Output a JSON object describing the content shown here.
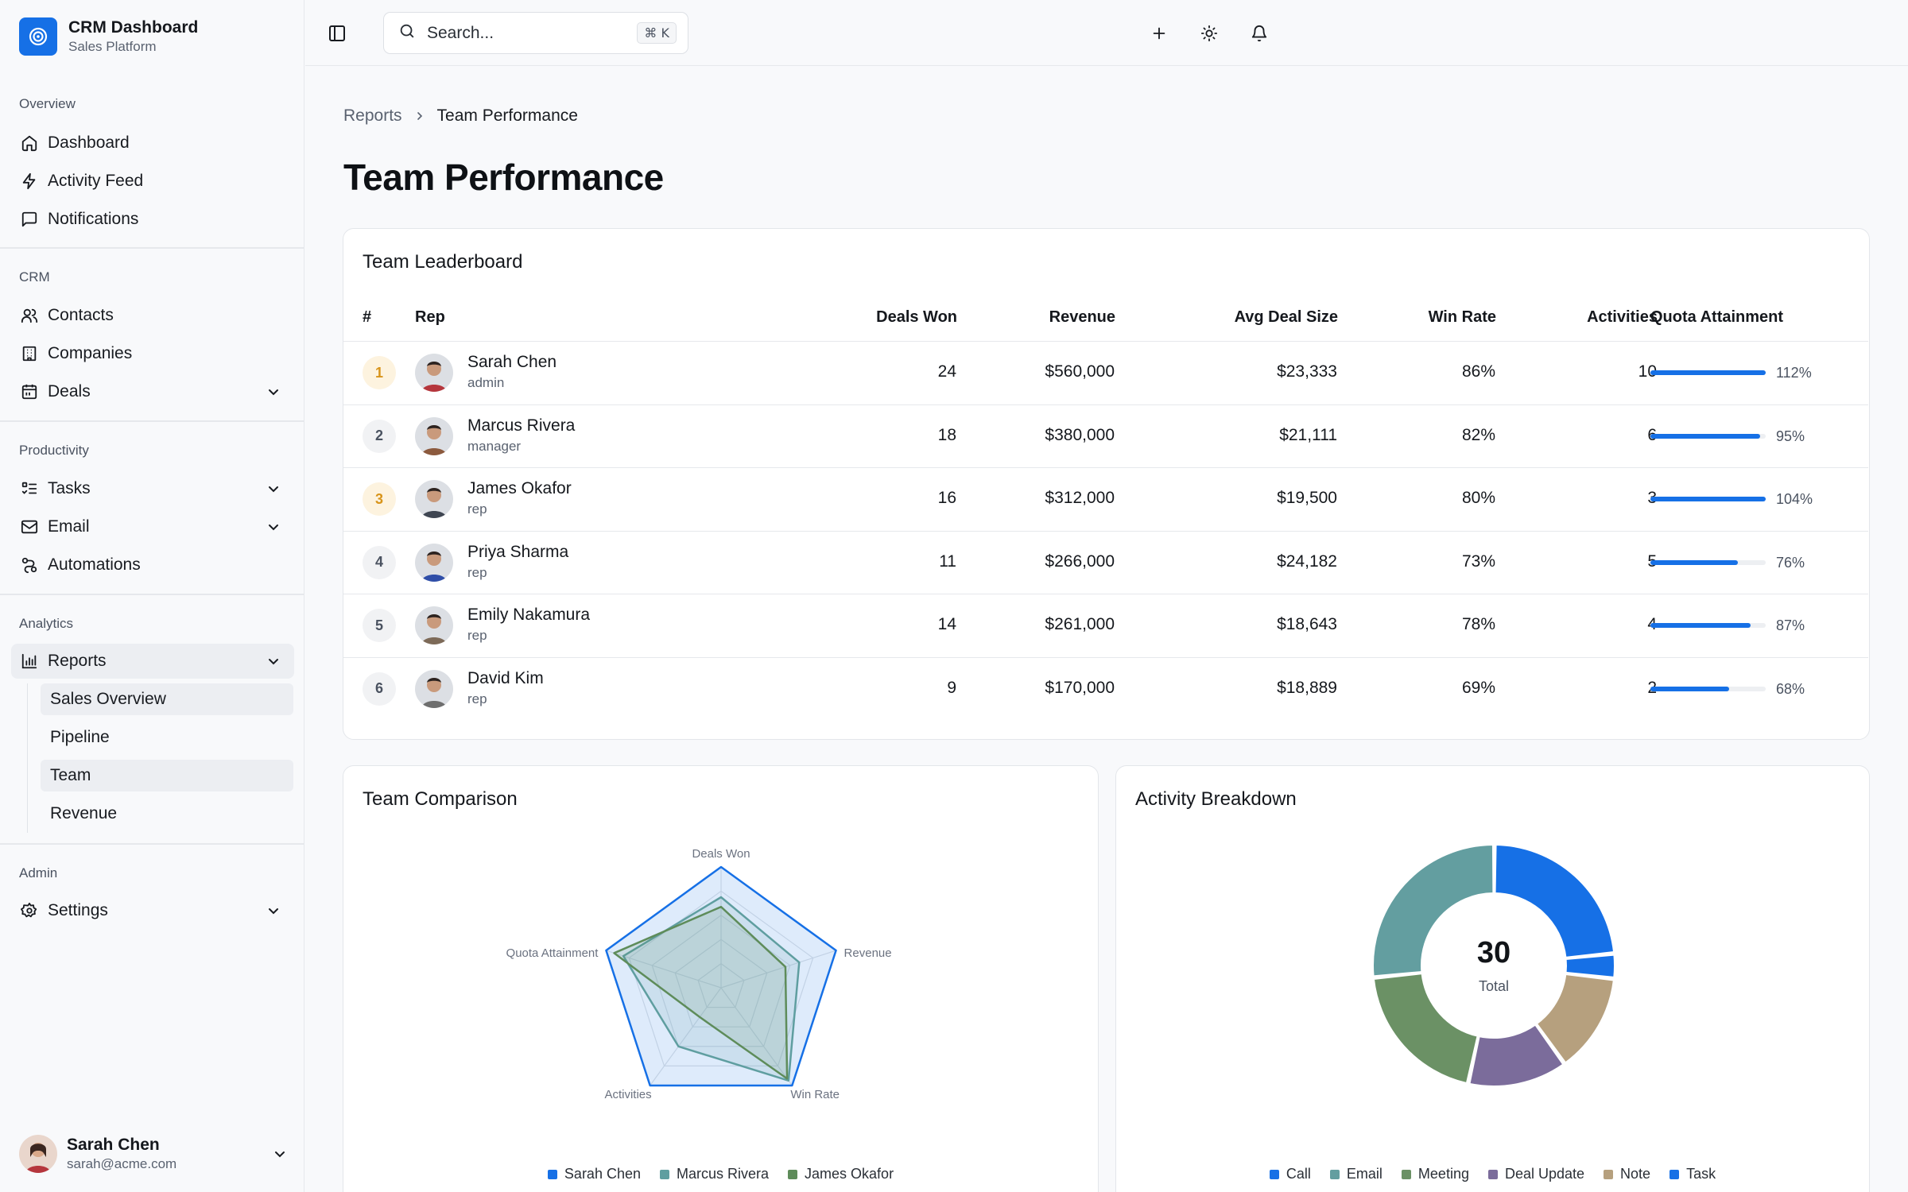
{
  "brand": {
    "title": "CRM Dashboard",
    "subtitle": "Sales Platform"
  },
  "sidebar": {
    "groups": [
      {
        "label": "Overview",
        "items": [
          {
            "label": "Dashboard",
            "icon": "home-icon"
          },
          {
            "label": "Activity Feed",
            "icon": "lightning-icon"
          },
          {
            "label": "Notifications",
            "icon": "message-square-icon"
          }
        ]
      },
      {
        "label": "CRM",
        "items": [
          {
            "label": "Contacts",
            "icon": "users-icon"
          },
          {
            "label": "Companies",
            "icon": "building-icon"
          },
          {
            "label": "Deals",
            "icon": "calendar-icon"
          }
        ]
      },
      {
        "label": "Productivity",
        "items": [
          {
            "label": "Tasks",
            "icon": "list-todo-icon"
          },
          {
            "label": "Email",
            "icon": "mail-icon"
          },
          {
            "label": "Automations",
            "icon": "workflow-icon"
          }
        ]
      },
      {
        "label": "Analytics",
        "items": [
          {
            "label": "Reports",
            "icon": "bar-chart-icon"
          }
        ],
        "subitems": [
          {
            "label": "Sales Overview"
          },
          {
            "label": "Pipeline"
          },
          {
            "label": "Team"
          },
          {
            "label": "Revenue"
          }
        ]
      },
      {
        "label": "Admin",
        "items": [
          {
            "label": "Settings",
            "icon": "gear-icon"
          }
        ]
      }
    ]
  },
  "user": {
    "name": "Sarah Chen",
    "email": "sarah@acme.com"
  },
  "topbar": {
    "search_placeholder": "Search...",
    "shortcut": "⌘ K"
  },
  "breadcrumb": {
    "parent": "Reports",
    "current": "Team Performance"
  },
  "page_title": "Team Performance",
  "leaderboard": {
    "title": "Team Leaderboard",
    "columns": {
      "rank": "#",
      "rep": "Rep",
      "deals_won": "Deals Won",
      "revenue": "Revenue",
      "avg_deal": "Avg Deal Size",
      "win_rate": "Win Rate",
      "activities": "Activities",
      "quota": "Quota Attainment"
    },
    "rows": [
      {
        "rank": "1",
        "name": "Sarah Chen",
        "role": "admin",
        "deals_won": "24",
        "revenue": "$560,000",
        "avg_deal": "$23,333",
        "win_rate": "86%",
        "activities": "10",
        "quota": "112%",
        "quota_fill": 1.0,
        "medal": true,
        "avatar_color": "#b5363d"
      },
      {
        "rank": "2",
        "name": "Marcus Rivera",
        "role": "manager",
        "deals_won": "18",
        "revenue": "$380,000",
        "avg_deal": "$21,111",
        "win_rate": "82%",
        "activities": "6",
        "quota": "95%",
        "quota_fill": 0.95,
        "medal": false,
        "avatar_color": "#8c5a3e"
      },
      {
        "rank": "3",
        "name": "James Okafor",
        "role": "rep",
        "deals_won": "16",
        "revenue": "$312,000",
        "avg_deal": "$19,500",
        "win_rate": "80%",
        "activities": "3",
        "quota": "104%",
        "quota_fill": 1.0,
        "medal": true,
        "avatar_color": "#3f4652"
      },
      {
        "rank": "4",
        "name": "Priya Sharma",
        "role": "rep",
        "deals_won": "11",
        "revenue": "$266,000",
        "avg_deal": "$24,182",
        "win_rate": "73%",
        "activities": "5",
        "quota": "76%",
        "quota_fill": 0.76,
        "medal": false,
        "avatar_color": "#2f4ea8"
      },
      {
        "rank": "5",
        "name": "Emily Nakamura",
        "role": "rep",
        "deals_won": "14",
        "revenue": "$261,000",
        "avg_deal": "$18,643",
        "win_rate": "78%",
        "activities": "4",
        "quota": "87%",
        "quota_fill": 0.87,
        "medal": false,
        "avatar_color": "#7d6a58"
      },
      {
        "rank": "6",
        "name": "David Kim",
        "role": "rep",
        "deals_won": "9",
        "revenue": "$170,000",
        "avg_deal": "$18,889",
        "win_rate": "69%",
        "activities": "2",
        "quota": "68%",
        "quota_fill": 0.68,
        "medal": false,
        "avatar_color": "#6e6e6e"
      }
    ]
  },
  "colors": {
    "accent": "#1670e6",
    "gold": "#d8941a"
  },
  "chart_data": [
    {
      "type": "radar",
      "title": "Team Comparison",
      "axes": [
        "Deals Won",
        "Revenue",
        "Win Rate",
        "Activities",
        "Quota Attainment"
      ],
      "series": [
        {
          "name": "Sarah Chen",
          "values": [
            1.0,
            1.0,
            1.0,
            1.0,
            1.0
          ],
          "color": "#1670e6"
        },
        {
          "name": "Marcus Rivera",
          "values": [
            0.75,
            0.68,
            0.95,
            0.6,
            0.85
          ],
          "color": "#5f9ea0"
        },
        {
          "name": "James Okafor",
          "values": [
            0.67,
            0.56,
            0.93,
            0.3,
            0.93
          ],
          "color": "#5e8c5a"
        }
      ]
    },
    {
      "type": "donut",
      "title": "Activity Breakdown",
      "center_value": "30",
      "center_label": "Total",
      "slices": [
        {
          "name": "Call",
          "value": 7,
          "color": "#1670e6"
        },
        {
          "name": "Task",
          "value": 1,
          "color": "#1670e6"
        },
        {
          "name": "Note",
          "value": 4,
          "color": "#b6a07e"
        },
        {
          "name": "Deal Update",
          "value": 4,
          "color": "#7b6c9b"
        },
        {
          "name": "Meeting",
          "value": 6,
          "color": "#6b9165"
        },
        {
          "name": "Email",
          "value": 8,
          "color": "#639ea0"
        }
      ],
      "legend": [
        {
          "name": "Call",
          "color": "#1670e6"
        },
        {
          "name": "Email",
          "color": "#639ea0"
        },
        {
          "name": "Meeting",
          "color": "#6b9165"
        },
        {
          "name": "Deal Update",
          "color": "#7b6c9b"
        },
        {
          "name": "Note",
          "color": "#b6a07e"
        },
        {
          "name": "Task",
          "color": "#1670e6"
        }
      ]
    }
  ]
}
